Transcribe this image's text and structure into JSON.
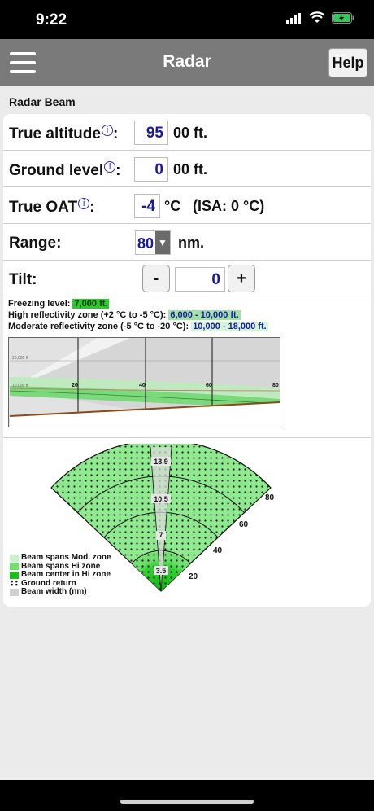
{
  "status": {
    "time": "9:22"
  },
  "nav": {
    "title": "Radar",
    "help_label": "Help"
  },
  "section": {
    "label": "Radar Beam"
  },
  "fields": {
    "altitude": {
      "label": "True altitude",
      "value": "95",
      "unit": "00 ft."
    },
    "ground": {
      "label": "Ground level",
      "value": "0",
      "unit": "00 ft."
    },
    "oat": {
      "label": "True OAT",
      "value": "-4",
      "unit": "°C",
      "isa": "(ISA: 0 °C)"
    },
    "range": {
      "label": "Range:",
      "value": "80",
      "unit": "nm."
    },
    "tilt": {
      "label": "Tilt:",
      "minus": "-",
      "plus": "+",
      "value": "0"
    }
  },
  "info": {
    "freezing_label": "Freezing level:",
    "freezing_value": "7,000 ft.",
    "high_label": "High reflectivity zone (+2 °C to -5 °C):",
    "high_value": "6,000 - 10,000 ft.",
    "mod_label": "Moderate reflectivity zone (-5 °C to -20 °C):",
    "mod_value": "10,000 - 18,000 ft."
  },
  "profile": {
    "ticks": [
      "20",
      "40",
      "60",
      "80"
    ],
    "alt_labels": [
      "20,000 ft",
      "10,000 ft"
    ]
  },
  "radar": {
    "range_labels": [
      "20",
      "40",
      "60",
      "80"
    ],
    "width_labels": [
      "3.5",
      "7",
      "10.5",
      "13.9"
    ]
  },
  "legend": [
    {
      "label": "Beam spans Mod. zone",
      "color": "#c8f2c8"
    },
    {
      "label": "Beam spans Hi zone",
      "color": "#6ee06e"
    },
    {
      "label": "Beam center in Hi zone",
      "color": "#19c019"
    },
    {
      "label": "Ground return",
      "color": "#111111"
    },
    {
      "label": "Beam width (nm)",
      "color": "#d0d0d0"
    }
  ]
}
